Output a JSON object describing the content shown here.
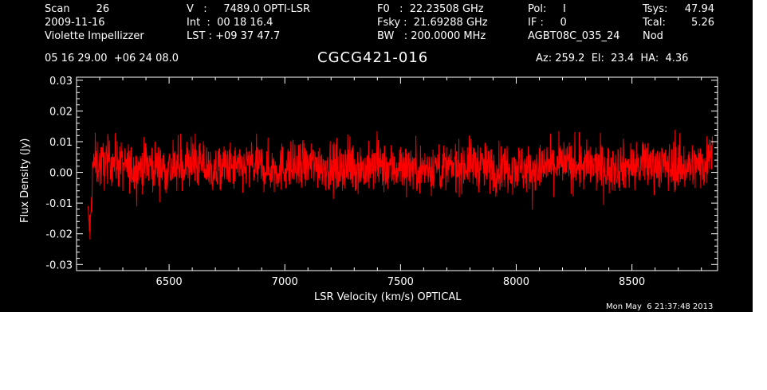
{
  "header": {
    "col1": [
      "Scan        26",
      "2009-11-16",
      "Violette Impellizzer"
    ],
    "col2": [
      "V   :     7489.0 OPTI-LSR",
      "Int  :  00 18 16.4",
      "LST : +09 37 47.7"
    ],
    "col3": [
      "F0   :  22.23508 GHz",
      "Fsky :  21.69288 GHz",
      "BW   : 200.0000 MHz"
    ],
    "col4": [
      "Pol:     I",
      "IF :     0",
      "AGBT08C_035_24"
    ],
    "col5_labels": [
      "Tsys:",
      "Tcal:",
      "Nod"
    ],
    "col5_values": [
      "47.94",
      "5.26",
      ""
    ],
    "coords": "05 16 29.00  +06 24 08.0",
    "source": "CGCG421-016",
    "azelha": "Az: 259.2  El:  23.4  HA:  4.36",
    "timestamp": "Mon May  6 21:37:48 2013"
  },
  "chart_data": {
    "type": "line",
    "title": "CGCG421-016",
    "xlabel": "LSR Velocity (km/s) OPTICAL",
    "ylabel": "Flux Density (Jy)",
    "xlim": [
      6100,
      8870
    ],
    "ylim": [
      -0.032,
      0.031
    ],
    "xticks": [
      6500,
      7000,
      7500,
      8000,
      8500
    ],
    "xtick_labels": [
      "6500",
      "7000",
      "7500",
      "8000",
      "8500"
    ],
    "yticks": [
      -0.03,
      -0.02,
      -0.01,
      0.0,
      0.01,
      0.02,
      0.03
    ],
    "ytick_labels": [
      "-0.03",
      "-0.02",
      "-0.01",
      "0.00",
      "0.01",
      "0.02",
      "0.03"
    ],
    "series": [
      {
        "color": "#ff0000",
        "x": [
          6150,
          6160,
          6170,
          6180,
          6200,
          6250,
          6300,
          6350,
          6400,
          6450,
          6500,
          6550,
          6600,
          6650,
          6700,
          6750,
          6800,
          6850,
          6900,
          6950,
          7000,
          7050,
          7100,
          7150,
          7200,
          7250,
          7300,
          7350,
          7400,
          7450,
          7500,
          7550,
          7600,
          7650,
          7700,
          7750,
          7800,
          7850,
          7900,
          7950,
          8000,
          8050,
          8100,
          8150,
          8200,
          8250,
          8300,
          8350,
          8400,
          8450,
          8500,
          8550,
          8600,
          8650,
          8700,
          8750,
          8780,
          8800,
          8820,
          8830,
          8840,
          8850
        ],
        "y": [
          -0.015,
          -0.019,
          0.001,
          0.004,
          0.002,
          0.004,
          0.002,
          0.001,
          0.003,
          0.002,
          0.001,
          0.002,
          0.003,
          0.002,
          0.0,
          0.002,
          0.001,
          0.002,
          0.002,
          0.001,
          0.002,
          0.001,
          0.002,
          0.003,
          0.001,
          0.002,
          0.002,
          0.001,
          0.002,
          0.001,
          0.002,
          0.002,
          0.001,
          0.002,
          0.001,
          0.002,
          0.003,
          0.002,
          0.001,
          0.002,
          0.002,
          0.001,
          0.001,
          0.002,
          0.003,
          0.002,
          0.002,
          0.002,
          0.001,
          0.002,
          0.002,
          0.002,
          0.003,
          0.002,
          0.002,
          0.002,
          0.002,
          0.003,
          0.002,
          0.006,
          0.009,
          0.011
        ],
        "noise_sigma": 0.004
      }
    ],
    "grid": false,
    "background": "#000000",
    "axis_color": "#ffffff"
  }
}
